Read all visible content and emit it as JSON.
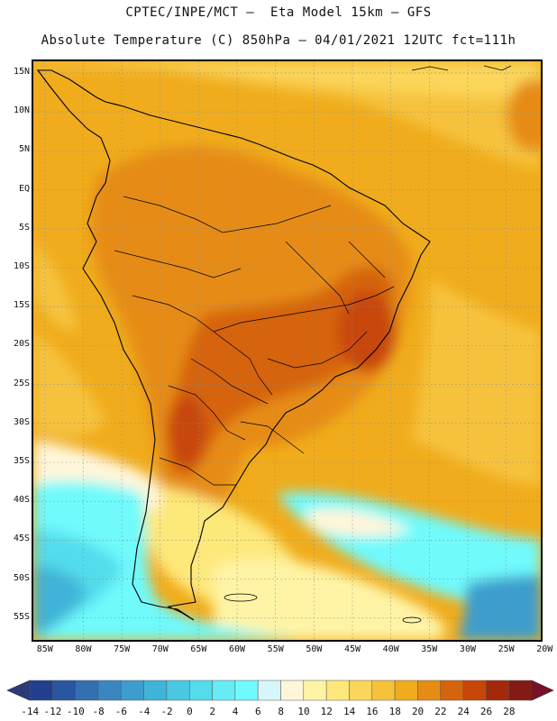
{
  "title": {
    "line1": "CPTEC/INPE/MCT –  Eta Model 15km – GFS",
    "line2": "Absolute Temperature (C) 850hPa – 04/01/2021 12UTC fct=111h"
  },
  "map": {
    "lat_labels": [
      "15N",
      "10N",
      "5N",
      "EQ",
      "5S",
      "10S",
      "15S",
      "20S",
      "25S",
      "30S",
      "35S",
      "40S",
      "45S",
      "50S",
      "55S"
    ],
    "lon_labels": [
      "85W",
      "80W",
      "75W",
      "70W",
      "65W",
      "60W",
      "55W",
      "50W",
      "45W",
      "40W",
      "35W",
      "30W",
      "25W",
      "20W"
    ],
    "lat_range": [
      16.5,
      -57.8
    ],
    "lon_range": [
      -86.5,
      -20.5
    ],
    "gridlines": "dotted"
  },
  "colorbar": {
    "labels": [
      "-14",
      "-12",
      "-10",
      "-8",
      "-6",
      "-4",
      "-2",
      "0",
      "2",
      "4",
      "6",
      "8",
      "10",
      "12",
      "14",
      "16",
      "18",
      "20",
      "22",
      "24",
      "26",
      "28"
    ],
    "colors": [
      "#23408e",
      "#2a55a0",
      "#3270b2",
      "#3a86c0",
      "#3d9dcc",
      "#40b4d8",
      "#4ac8e2",
      "#52dcec",
      "#66ecf4",
      "#6ffafc",
      "#d6f6fa",
      "#fff6da",
      "#fff4a6",
      "#fde87a",
      "#fbd65a",
      "#f6c23c",
      "#f0ac1c",
      "#e68c14",
      "#d6640c",
      "#c84608",
      "#a4280a",
      "#841a14"
    ],
    "unit_extension_left": "#2b3a7a",
    "unit_extension_right": "#7a0f28"
  }
}
